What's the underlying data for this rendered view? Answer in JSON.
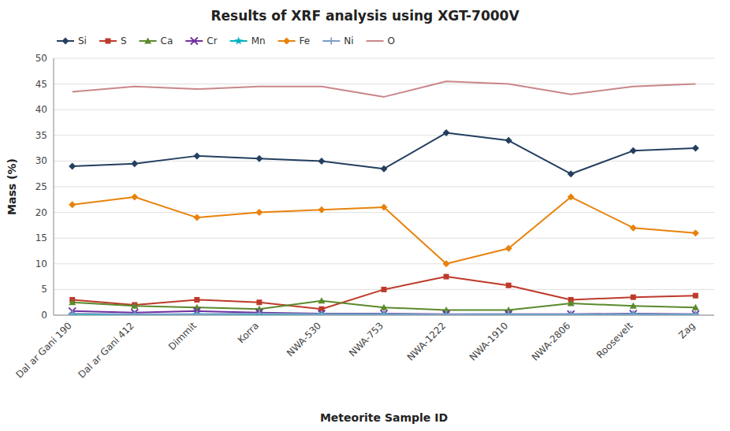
{
  "chart_data": {
    "type": "line",
    "title": "Results of XRF analysis using XGT-7000V",
    "xlabel": "Meteorite Sample ID",
    "ylabel": "Mass (%)",
    "categories": [
      "Dal ar Gani 190",
      "Dal ar Gani 412",
      "Dimmit",
      "Korra",
      "NWA-530",
      "NWA-753",
      "NWA-1222",
      "NWA-1910",
      "NWA-2806",
      "Roosevelt",
      "Zag"
    ],
    "series": [
      {
        "name": "Si",
        "color": "#243F60",
        "marker": "diamond",
        "line_style": "solid",
        "values": [
          29.0,
          29.5,
          31.0,
          30.5,
          30.0,
          28.5,
          35.5,
          34.0,
          27.5,
          32.0,
          32.5
        ]
      },
      {
        "name": "S",
        "color": "#BE3A2A",
        "marker": "square",
        "line_style": "solid",
        "values": [
          3.0,
          2.0,
          3.0,
          2.5,
          1.2,
          5.0,
          7.5,
          5.8,
          3.0,
          3.5,
          3.8
        ]
      },
      {
        "name": "Ca",
        "color": "#5B8A2D",
        "marker": "triangle",
        "line_style": "solid",
        "values": [
          2.5,
          1.8,
          1.5,
          1.2,
          2.8,
          1.5,
          1.0,
          1.0,
          2.3,
          1.8,
          1.5
        ]
      },
      {
        "name": "Cr",
        "color": "#7030A0",
        "marker": "x",
        "line_style": "solid",
        "values": [
          0.8,
          0.5,
          0.8,
          0.5,
          0.3,
          0.3,
          0.2,
          0.2,
          0.2,
          0.3,
          0.2
        ]
      },
      {
        "name": "Mn",
        "color": "#00B0C0",
        "marker": "star",
        "line_style": "solid",
        "values": [
          0.2,
          0.1,
          0.2,
          0.2,
          0.2,
          0.2,
          0.1,
          0.1,
          0.1,
          0.2,
          0.1
        ]
      },
      {
        "name": "Fe",
        "color": "#E8820C",
        "marker": "diamond",
        "line_style": "solid",
        "values": [
          21.5,
          23.0,
          19.0,
          20.0,
          20.5,
          21.0,
          10.0,
          13.0,
          23.0,
          17.0,
          16.0
        ]
      },
      {
        "name": "Ni",
        "color": "#7F9DC5",
        "marker": "plus",
        "line_style": "solid",
        "values": [
          0.3,
          0.2,
          0.2,
          0.3,
          0.2,
          0.2,
          0.15,
          0.2,
          0.2,
          0.2,
          0.2
        ]
      },
      {
        "name": "O",
        "color": "#C9878A",
        "marker": "none",
        "line_style": "solid",
        "values": [
          43.5,
          44.5,
          44.0,
          44.5,
          44.5,
          42.5,
          45.5,
          45.0,
          43.0,
          44.5,
          45.0
        ]
      }
    ],
    "ylim": [
      0,
      50
    ],
    "yticks": [
      0,
      5,
      10,
      15,
      20,
      25,
      30,
      35,
      40,
      45,
      50
    ],
    "grid": true,
    "legend": "top-left"
  }
}
